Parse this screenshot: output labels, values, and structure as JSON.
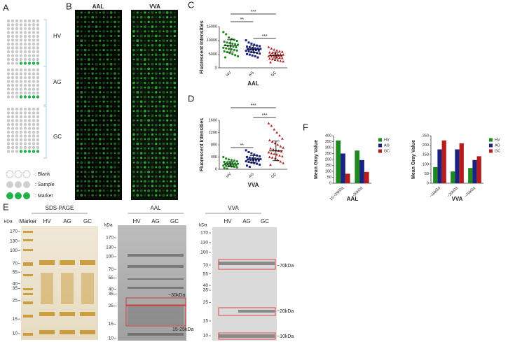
{
  "panel_labels": [
    "A",
    "B",
    "C",
    "D",
    "E",
    "F"
  ],
  "panel_a": {
    "groups": [
      "HV",
      "AG",
      "GC"
    ],
    "legend": [
      ": Blank",
      ": Sample",
      ": Marker"
    ]
  },
  "panel_b": {
    "titles": [
      "AAL",
      "VVA"
    ]
  },
  "chart_data": [
    {
      "type": "dot",
      "ylabel": "Fluorescent Intensities",
      "xlabel": "AAL",
      "categories": [
        "HV",
        "AG",
        "GC"
      ],
      "groups": [
        {
          "color": "#1e8a1e",
          "marker": "circle",
          "values": [
            13000,
            12200,
            11000,
            10500,
            10200,
            9800,
            9500,
            9200,
            9000,
            8800,
            8600,
            8400,
            8200,
            8000,
            7900,
            7700,
            7500,
            7300,
            7100,
            6900,
            6700,
            6500,
            6300,
            6000,
            5700,
            5400,
            5000,
            4600,
            4200,
            3800
          ],
          "mean": 8000,
          "sd": 2200
        },
        {
          "color": "#1a237e",
          "marker": "square",
          "values": [
            10000,
            9200,
            8800,
            8400,
            8100,
            7900,
            7700,
            7500,
            7300,
            7100,
            7000,
            6900,
            6800,
            6700,
            6600,
            6500,
            6300,
            6200,
            6000,
            5800,
            5600,
            5400,
            5200,
            5000,
            4800,
            4500,
            4200,
            3800
          ],
          "mean": 6800,
          "sd": 1300
        },
        {
          "color": "#b71c1c",
          "marker": "triangle",
          "values": [
            7500,
            7000,
            6600,
            6300,
            6000,
            5800,
            5600,
            5400,
            5200,
            5000,
            4900,
            4800,
            4700,
            4600,
            4500,
            4400,
            4300,
            4200,
            4100,
            4000,
            3900,
            3700,
            3500,
            3300,
            3100,
            2900,
            2700,
            2500,
            2300,
            2000
          ],
          "mean": 4500,
          "sd": 1200
        }
      ],
      "brackets": [
        {
          "text": "***",
          "from": "HV",
          "to": "GC"
        },
        {
          "text": "**",
          "from": "HV",
          "to": "AG"
        },
        {
          "text": "***",
          "from": "AG",
          "to": "GC"
        }
      ],
      "ylim": [
        0,
        15000
      ],
      "yticks": [
        0,
        5000,
        10000,
        15000
      ]
    },
    {
      "type": "dot",
      "ylabel": "Fluorescent Intensities",
      "xlabel": "VVA",
      "categories": [
        "HV",
        "AG",
        "GC"
      ],
      "groups": [
        {
          "color": "#1e8a1e",
          "marker": "circle",
          "values": [
            400,
            350,
            320,
            300,
            280,
            260,
            240,
            220,
            210,
            200,
            190,
            180,
            170,
            160,
            150,
            140,
            130,
            120,
            110,
            100,
            90,
            80,
            60,
            40,
            20
          ],
          "mean": 170,
          "sd": 80
        },
        {
          "color": "#1a237e",
          "marker": "square",
          "values": [
            620,
            560,
            520,
            480,
            450,
            420,
            400,
            380,
            360,
            350,
            340,
            330,
            320,
            310,
            300,
            290,
            280,
            260,
            240,
            220,
            200,
            180,
            150,
            120,
            80
          ],
          "mean": 330,
          "sd": 120
        },
        {
          "color": "#b71c1c",
          "marker": "triangle",
          "values": [
            1500,
            1420,
            1300,
            1200,
            1100,
            1000,
            950,
            900,
            850,
            800,
            750,
            700,
            680,
            650,
            620,
            600,
            580,
            550,
            520,
            500,
            480,
            450,
            420,
            400,
            380,
            350,
            300,
            250,
            200,
            150
          ],
          "mean": 600,
          "sd": 320
        }
      ],
      "brackets": [
        {
          "text": "***",
          "from": "HV",
          "to": "GC"
        },
        {
          "text": "***",
          "from": "AG",
          "to": "GC"
        },
        {
          "text": "**",
          "from": "HV",
          "to": "AG"
        }
      ],
      "ylim": [
        0,
        1600
      ],
      "yticks": [
        0,
        400,
        800,
        1200,
        1600
      ]
    },
    {
      "type": "bar",
      "ylabel": "Mean Gray Value",
      "xlabel": "AAL",
      "categories": [
        "15~25kDa",
        "~30kDa"
      ],
      "series": [
        {
          "name": "HV",
          "color": "#1e8a1e",
          "values": [
            360,
            275
          ]
        },
        {
          "name": "AG",
          "color": "#1a237e",
          "values": [
            250,
            195
          ]
        },
        {
          "name": "GC",
          "color": "#b71c1c",
          "values": [
            80,
            95
          ]
        }
      ],
      "ylim": [
        0,
        400
      ],
      "yticks": [
        0,
        50,
        100,
        150,
        200,
        250,
        300,
        350,
        400
      ]
    },
    {
      "type": "bar",
      "ylabel": "Mean Gray Value",
      "xlabel": "VVA",
      "categories": [
        "~10kDa",
        "~20kDa",
        "~70kDa"
      ],
      "series": [
        {
          "name": "HV",
          "color": "#1e8a1e",
          "values": [
            85,
            62,
            80
          ]
        },
        {
          "name": "AG",
          "color": "#1a237e",
          "values": [
            178,
            178,
            122
          ]
        },
        {
          "name": "GC",
          "color": "#b71c1c",
          "values": [
            225,
            210,
            142
          ]
        }
      ],
      "ylim": [
        0,
        250
      ],
      "yticks": [
        0,
        50,
        100,
        150,
        200,
        250
      ]
    }
  ],
  "panel_e": {
    "kda": "kDa",
    "gels": [
      {
        "title": "SDS-PAGE",
        "lanes": [
          "Marker",
          "HV",
          "AG",
          "GC"
        ],
        "ladder": [
          170,
          130,
          100,
          70,
          55,
          40,
          35,
          25,
          15,
          10
        ]
      },
      {
        "title": "AAL",
        "lanes": [
          "HV",
          "AG",
          "GC"
        ],
        "ladder": [
          170,
          130,
          100,
          70,
          55,
          40,
          35,
          25,
          15,
          10
        ]
      },
      {
        "title": "VVA",
        "lanes": [
          "HV",
          "AG",
          "GC"
        ],
        "ladder": [
          170,
          130,
          100,
          70,
          55,
          40,
          35,
          25,
          15,
          10
        ]
      }
    ],
    "annotations": [
      "~30kDa",
      "15-25kDa",
      "~70kDa",
      "~20kDa",
      "~10kDa"
    ]
  }
}
